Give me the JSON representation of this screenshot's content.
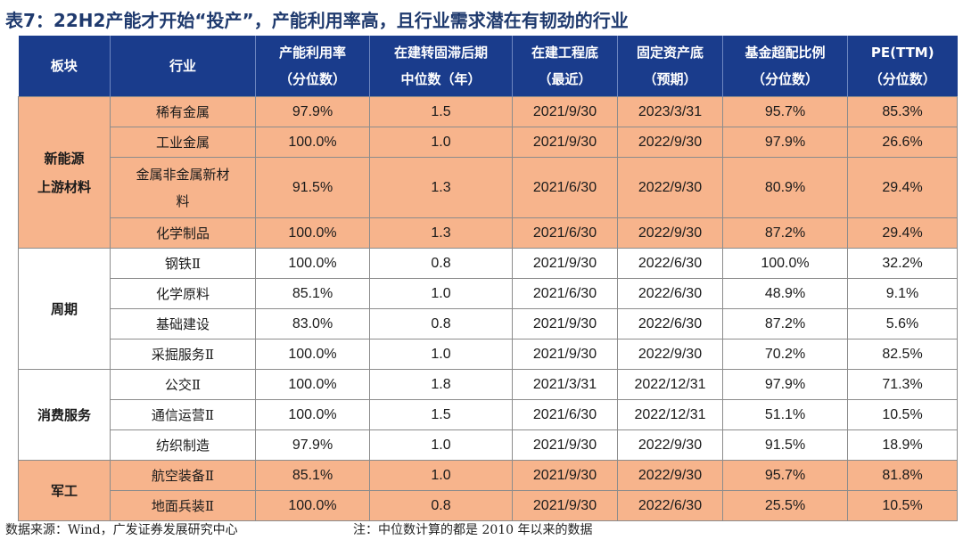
{
  "title": "表7：22H2产能才开始“投产”，产能利用率高，且行业需求潜在有韧劲的行业",
  "headers": [
    {
      "l1": "板块",
      "l2": ""
    },
    {
      "l1": "行业",
      "l2": ""
    },
    {
      "l1": "产能利用率",
      "l2": "（分位数）"
    },
    {
      "l1": "在建转固滞后期",
      "l2": "中位数（年）"
    },
    {
      "l1": "在建工程底",
      "l2": "（最近）"
    },
    {
      "l1": "固定资产底",
      "l2": "（预期）"
    },
    {
      "l1": "基金超配比例",
      "l2": "（分位数）"
    },
    {
      "l1": "PE(TTM)",
      "l2": "（分位数）"
    }
  ],
  "groups": [
    {
      "sector_l1": "新能源",
      "sector_l2": "上游材料",
      "style": "orange",
      "rows": [
        {
          "ind": "稀有金属",
          "ind2": "",
          "cu": "97.9%",
          "lag": "1.5",
          "cip": "2021/9/30",
          "fa": "2023/3/31",
          "fund": "95.7%",
          "pe": "85.3%"
        },
        {
          "ind": "工业金属",
          "ind2": "",
          "cu": "100.0%",
          "lag": "1.0",
          "cip": "2021/9/30",
          "fa": "2022/9/30",
          "fund": "97.9%",
          "pe": "26.6%"
        },
        {
          "ind": "金属非金属新材",
          "ind2": "料",
          "cu": "91.5%",
          "lag": "1.3",
          "cip": "2021/6/30",
          "fa": "2022/9/30",
          "fund": "80.9%",
          "pe": "29.4%"
        },
        {
          "ind": "化学制品",
          "ind2": "",
          "cu": "100.0%",
          "lag": "1.3",
          "cip": "2021/6/30",
          "fa": "2022/9/30",
          "fund": "87.2%",
          "pe": "29.4%"
        }
      ]
    },
    {
      "sector_l1": "周期",
      "sector_l2": "",
      "style": "white",
      "rows": [
        {
          "ind": "钢铁Ⅱ",
          "ind2": "",
          "cu": "100.0%",
          "lag": "0.8",
          "cip": "2021/9/30",
          "fa": "2022/6/30",
          "fund": "100.0%",
          "pe": "32.2%"
        },
        {
          "ind": "化学原料",
          "ind2": "",
          "cu": "85.1%",
          "lag": "1.0",
          "cip": "2021/6/30",
          "fa": "2022/6/30",
          "fund": "48.9%",
          "pe": "9.1%"
        },
        {
          "ind": "基础建设",
          "ind2": "",
          "cu": "83.0%",
          "lag": "0.8",
          "cip": "2021/9/30",
          "fa": "2022/6/30",
          "fund": "87.2%",
          "pe": "5.6%"
        },
        {
          "ind": "采掘服务Ⅱ",
          "ind2": "",
          "cu": "100.0%",
          "lag": "1.0",
          "cip": "2021/9/30",
          "fa": "2022/9/30",
          "fund": "70.2%",
          "pe": "82.5%"
        }
      ]
    },
    {
      "sector_l1": "消费服务",
      "sector_l2": "",
      "style": "white",
      "rows": [
        {
          "ind": "公交Ⅱ",
          "ind2": "",
          "cu": "100.0%",
          "lag": "1.8",
          "cip": "2021/3/31",
          "fa": "2022/12/31",
          "fund": "97.9%",
          "pe": "71.3%"
        },
        {
          "ind": "通信运营Ⅱ",
          "ind2": "",
          "cu": "100.0%",
          "lag": "1.5",
          "cip": "2021/6/30",
          "fa": "2022/12/31",
          "fund": "51.1%",
          "pe": "10.5%"
        },
        {
          "ind": "纺织制造",
          "ind2": "",
          "cu": "97.9%",
          "lag": "1.0",
          "cip": "2021/9/30",
          "fa": "2022/9/30",
          "fund": "91.5%",
          "pe": "18.9%"
        }
      ]
    },
    {
      "sector_l1": "军工",
      "sector_l2": "",
      "style": "orange",
      "rows": [
        {
          "ind": "航空装备Ⅱ",
          "ind2": "",
          "cu": "85.1%",
          "lag": "1.0",
          "cip": "2021/9/30",
          "fa": "2022/9/30",
          "fund": "95.7%",
          "pe": "81.8%"
        },
        {
          "ind": "地面兵装Ⅱ",
          "ind2": "",
          "cu": "100.0%",
          "lag": "0.8",
          "cip": "2021/9/30",
          "fa": "2022/6/30",
          "fund": "25.5%",
          "pe": "10.5%"
        }
      ]
    }
  ],
  "footer": {
    "source": "数据来源：Wind，广发证券发展研究中心",
    "note": "注：中位数计算的都是 2010 年以来的数据"
  }
}
